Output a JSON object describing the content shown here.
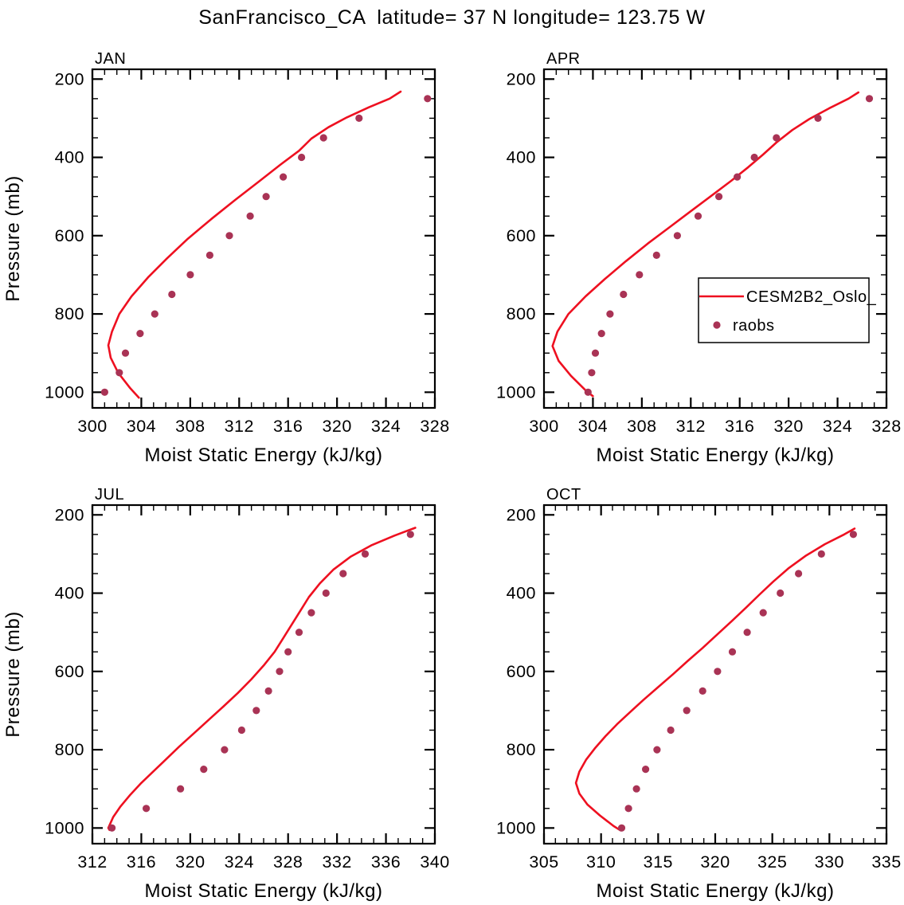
{
  "title": "SanFrancisco_CA  latitude= 37 N longitude= 123.75 W",
  "colors": {
    "model_line": "#ee1020",
    "obs_dot": "#a93355",
    "axis": "#000000",
    "background": "#ffffff"
  },
  "legend": {
    "entries": [
      {
        "label": "CESM2B2_Oslo_",
        "type": "line"
      },
      {
        "label": "raobs",
        "type": "dot"
      }
    ],
    "located_in_panel": "APR"
  },
  "chart_data": [
    {
      "type": "line",
      "panel_label": "JAN",
      "xlabel": "Moist Static Energy (kJ/kg)",
      "ylabel": "Pressure (mb)",
      "show_ylabel": true,
      "show_legend": false,
      "xlim": [
        300,
        328
      ],
      "x_ticks": [
        300,
        304,
        308,
        312,
        316,
        320,
        324,
        328
      ],
      "x_minor_step": 1,
      "ylim": [
        175,
        1040
      ],
      "y_inverted": true,
      "y_ticks": [
        200,
        400,
        600,
        800,
        1000
      ],
      "y_minor_step": 50,
      "series": [
        {
          "name": "CESM2B2_Oslo_",
          "style": "line",
          "points": [
            [
              303.8,
              1014
            ],
            [
              303.1,
              990
            ],
            [
              302.1,
              950
            ],
            [
              301.5,
              912
            ],
            [
              301.3,
              880
            ],
            [
              301.6,
              845
            ],
            [
              302.2,
              800
            ],
            [
              303.2,
              755
            ],
            [
              304.6,
              705
            ],
            [
              306.1,
              658
            ],
            [
              307.8,
              608
            ],
            [
              309.7,
              558
            ],
            [
              311.7,
              508
            ],
            [
              313.6,
              462
            ],
            [
              315.4,
              418
            ],
            [
              316.9,
              383
            ],
            [
              317.9,
              352
            ],
            [
              319.3,
              323
            ],
            [
              320.8,
              298
            ],
            [
              322.6,
              272
            ],
            [
              324.3,
              250
            ],
            [
              325.2,
              232
            ]
          ]
        },
        {
          "name": "raobs",
          "style": "dot",
          "points": [
            [
              301.0,
              1000
            ],
            [
              302.2,
              950
            ],
            [
              302.7,
              900
            ],
            [
              303.9,
              850
            ],
            [
              305.1,
              800
            ],
            [
              306.5,
              750
            ],
            [
              308.0,
              700
            ],
            [
              309.6,
              650
            ],
            [
              311.2,
              600
            ],
            [
              312.9,
              550
            ],
            [
              314.2,
              500
            ],
            [
              315.6,
              450
            ],
            [
              317.1,
              400
            ],
            [
              318.9,
              350
            ],
            [
              321.8,
              300
            ],
            [
              327.4,
              250
            ]
          ]
        }
      ]
    },
    {
      "type": "line",
      "panel_label": "APR",
      "xlabel": "Moist Static Energy (kJ/kg)",
      "ylabel": "Pressure (mb)",
      "show_ylabel": false,
      "show_legend": true,
      "xlim": [
        300,
        328
      ],
      "x_ticks": [
        300,
        304,
        308,
        312,
        316,
        320,
        324,
        328
      ],
      "x_minor_step": 1,
      "ylim": [
        175,
        1040
      ],
      "y_inverted": true,
      "y_ticks": [
        200,
        400,
        600,
        800,
        1000
      ],
      "y_minor_step": 50,
      "series": [
        {
          "name": "CESM2B2_Oslo_",
          "style": "line",
          "points": [
            [
              304.0,
              1010
            ],
            [
              303.4,
              995
            ],
            [
              302.2,
              958
            ],
            [
              301.2,
              920
            ],
            [
              300.7,
              882
            ],
            [
              301.1,
              845
            ],
            [
              302.0,
              800
            ],
            [
              303.4,
              755
            ],
            [
              305.0,
              710
            ],
            [
              306.7,
              665
            ],
            [
              308.5,
              620
            ],
            [
              310.2,
              580
            ],
            [
              311.9,
              540
            ],
            [
              313.6,
              500
            ],
            [
              315.3,
              460
            ],
            [
              316.7,
              425
            ],
            [
              317.9,
              393
            ],
            [
              319.0,
              362
            ],
            [
              320.3,
              330
            ],
            [
              321.7,
              302
            ],
            [
              323.3,
              275
            ],
            [
              324.9,
              250
            ],
            [
              325.7,
              234
            ]
          ]
        },
        {
          "name": "raobs",
          "style": "dot",
          "points": [
            [
              303.6,
              1000
            ],
            [
              303.9,
              950
            ],
            [
              304.2,
              900
            ],
            [
              304.7,
              850
            ],
            [
              305.4,
              800
            ],
            [
              306.5,
              750
            ],
            [
              307.8,
              700
            ],
            [
              309.2,
              650
            ],
            [
              310.9,
              600
            ],
            [
              312.6,
              550
            ],
            [
              314.3,
              500
            ],
            [
              315.8,
              450
            ],
            [
              317.2,
              400
            ],
            [
              319.0,
              350
            ],
            [
              322.4,
              300
            ],
            [
              326.6,
              250
            ]
          ]
        }
      ]
    },
    {
      "type": "line",
      "panel_label": "JUL",
      "xlabel": "Moist Static Energy (kJ/kg)",
      "ylabel": "Pressure (mb)",
      "show_ylabel": true,
      "show_legend": false,
      "xlim": [
        312,
        340
      ],
      "x_ticks": [
        312,
        316,
        320,
        324,
        328,
        332,
        336,
        340
      ],
      "x_minor_step": 1,
      "ylim": [
        175,
        1040
      ],
      "y_inverted": true,
      "y_ticks": [
        200,
        400,
        600,
        800,
        1000
      ],
      "y_minor_step": 50,
      "series": [
        {
          "name": "CESM2B2_Oslo_",
          "style": "line",
          "points": [
            [
              313.4,
              1005
            ],
            [
              313.3,
              1000
            ],
            [
              313.7,
              972
            ],
            [
              314.3,
              945
            ],
            [
              315.1,
              915
            ],
            [
              316.0,
              885
            ],
            [
              317.0,
              855
            ],
            [
              318.0,
              825
            ],
            [
              319.1,
              792
            ],
            [
              320.3,
              758
            ],
            [
              321.5,
              724
            ],
            [
              322.7,
              690
            ],
            [
              323.9,
              655
            ],
            [
              325.0,
              620
            ],
            [
              326.0,
              585
            ],
            [
              326.9,
              550
            ],
            [
              327.6,
              515
            ],
            [
              328.3,
              480
            ],
            [
              329.0,
              445
            ],
            [
              329.7,
              410
            ],
            [
              330.6,
              375
            ],
            [
              331.7,
              340
            ],
            [
              333.1,
              307
            ],
            [
              334.8,
              278
            ],
            [
              336.7,
              253
            ],
            [
              338.4,
              233
            ]
          ]
        },
        {
          "name": "raobs",
          "style": "dot",
          "points": [
            [
              313.6,
              1000
            ],
            [
              316.4,
              950
            ],
            [
              319.2,
              900
            ],
            [
              321.1,
              850
            ],
            [
              322.8,
              800
            ],
            [
              324.2,
              750
            ],
            [
              325.4,
              700
            ],
            [
              326.4,
              650
            ],
            [
              327.3,
              600
            ],
            [
              328.0,
              550
            ],
            [
              328.9,
              500
            ],
            [
              329.9,
              450
            ],
            [
              331.1,
              400
            ],
            [
              332.5,
              350
            ],
            [
              334.3,
              300
            ],
            [
              338.0,
              250
            ]
          ]
        }
      ]
    },
    {
      "type": "line",
      "panel_label": "OCT",
      "xlabel": "Moist Static Energy (kJ/kg)",
      "ylabel": "Pressure (mb)",
      "show_ylabel": false,
      "show_legend": false,
      "xlim": [
        305,
        335
      ],
      "x_ticks": [
        305,
        310,
        315,
        320,
        325,
        330,
        335
      ],
      "x_minor_step": 1,
      "ylim": [
        175,
        1040
      ],
      "y_inverted": true,
      "y_ticks": [
        200,
        400,
        600,
        800,
        1000
      ],
      "y_minor_step": 50,
      "series": [
        {
          "name": "CESM2B2_Oslo_",
          "style": "line",
          "points": [
            [
              311.7,
              1006
            ],
            [
              311.1,
              995
            ],
            [
              309.9,
              968
            ],
            [
              308.8,
              940
            ],
            [
              308.1,
              912
            ],
            [
              307.8,
              885
            ],
            [
              308.1,
              856
            ],
            [
              308.7,
              825
            ],
            [
              309.5,
              795
            ],
            [
              310.4,
              765
            ],
            [
              311.4,
              735
            ],
            [
              312.5,
              705
            ],
            [
              313.7,
              673
            ],
            [
              315.0,
              640
            ],
            [
              316.3,
              607
            ],
            [
              317.6,
              573
            ],
            [
              318.9,
              540
            ],
            [
              320.2,
              505
            ],
            [
              321.5,
              470
            ],
            [
              322.7,
              437
            ],
            [
              323.9,
              403
            ],
            [
              325.1,
              370
            ],
            [
              326.4,
              337
            ],
            [
              327.9,
              305
            ],
            [
              329.6,
              275
            ],
            [
              331.3,
              250
            ],
            [
              332.2,
              235
            ]
          ]
        },
        {
          "name": "raobs",
          "style": "dot",
          "points": [
            [
              311.8,
              1000
            ],
            [
              312.4,
              950
            ],
            [
              313.1,
              900
            ],
            [
              313.9,
              850
            ],
            [
              314.9,
              800
            ],
            [
              316.1,
              750
            ],
            [
              317.5,
              700
            ],
            [
              318.9,
              650
            ],
            [
              320.2,
              600
            ],
            [
              321.5,
              550
            ],
            [
              322.8,
              500
            ],
            [
              324.2,
              450
            ],
            [
              325.7,
              400
            ],
            [
              327.3,
              350
            ],
            [
              329.3,
              300
            ],
            [
              332.1,
              250
            ]
          ]
        }
      ]
    }
  ]
}
